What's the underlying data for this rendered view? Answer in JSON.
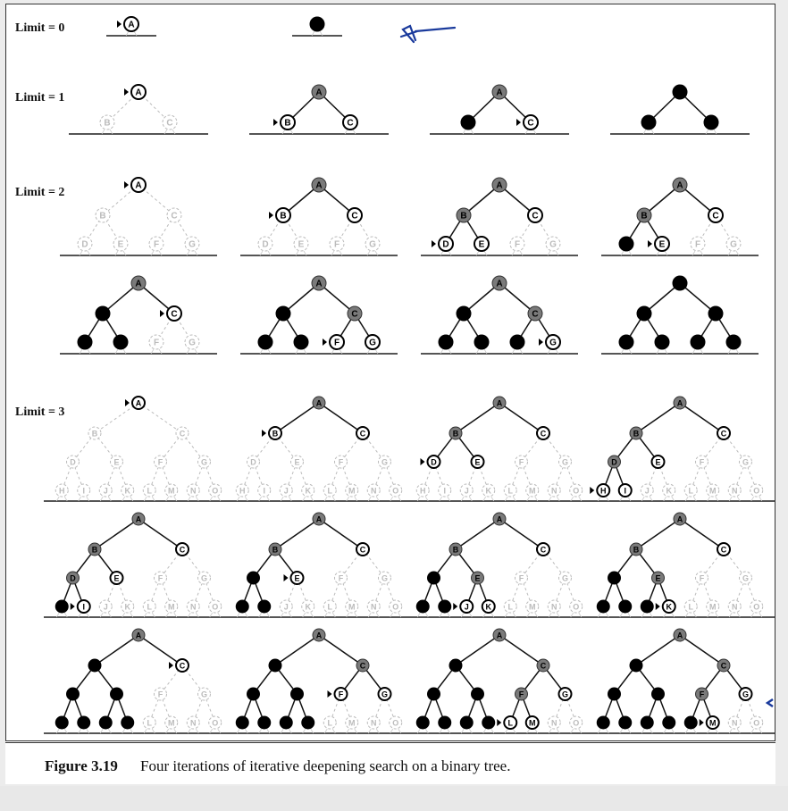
{
  "limit_labels": [
    "Limit = 0",
    "Limit = 1",
    "Limit = 2",
    "Limit = 3"
  ],
  "caption": {
    "number": "Figure 3.19",
    "text": "Four iterations of iterative deepening search on a binary tree."
  },
  "node_letters": [
    "A",
    "B",
    "C",
    "D",
    "E",
    "F",
    "G",
    "H",
    "I",
    "J",
    "K",
    "L",
    "M",
    "N",
    "O"
  ],
  "node_states": {
    "unvisited": "light dashed outline",
    "frontier": "white with black outline",
    "expanded": "gray fill",
    "discarded": "black fill"
  },
  "limit0_stages": [
    {
      "A": "f",
      "marker": "A"
    },
    {
      "A": "x"
    }
  ],
  "limit1_stages": [
    {
      "A": "f",
      "B": "u",
      "C": "u",
      "marker": "A"
    },
    {
      "A": "e",
      "B": "f",
      "C": "f",
      "marker": "B"
    },
    {
      "A": "e",
      "B": "x",
      "C": "f",
      "marker": "C"
    },
    {
      "A": "x",
      "B": "x",
      "C": "x"
    }
  ],
  "limit2_stages": [
    {
      "A": "f",
      "B": "u",
      "C": "u",
      "D": "u",
      "E": "u",
      "F": "u",
      "G": "u",
      "marker": "A"
    },
    {
      "A": "e",
      "B": "f",
      "C": "f",
      "D": "u",
      "E": "u",
      "F": "u",
      "G": "u",
      "marker": "B"
    },
    {
      "A": "e",
      "B": "e",
      "C": "f",
      "D": "f",
      "E": "f",
      "F": "u",
      "G": "u",
      "marker": "D"
    },
    {
      "A": "e",
      "B": "e",
      "C": "f",
      "D": "x",
      "E": "f",
      "F": "u",
      "G": "u",
      "marker": "E"
    },
    {
      "A": "e",
      "B": "x",
      "C": "f",
      "D": "x",
      "E": "x",
      "F": "u",
      "G": "u",
      "marker": "C"
    },
    {
      "A": "e",
      "B": "x",
      "C": "e",
      "D": "x",
      "E": "x",
      "F": "f",
      "G": "f",
      "marker": "F"
    },
    {
      "A": "e",
      "B": "x",
      "C": "e",
      "D": "x",
      "E": "x",
      "F": "x",
      "G": "f",
      "marker": "G"
    },
    {
      "A": "x",
      "B": "x",
      "C": "x",
      "D": "x",
      "E": "x",
      "F": "x",
      "G": "x"
    }
  ],
  "limit3_stages": [
    {
      "A": "f",
      "B": "u",
      "C": "u",
      "D": "u",
      "E": "u",
      "F": "u",
      "G": "u",
      "H": "u",
      "I": "u",
      "J": "u",
      "K": "u",
      "L": "u",
      "M": "u",
      "N": "u",
      "O": "u",
      "marker": "A"
    },
    {
      "A": "e",
      "B": "f",
      "C": "f",
      "D": "u",
      "E": "u",
      "F": "u",
      "G": "u",
      "H": "u",
      "I": "u",
      "J": "u",
      "K": "u",
      "L": "u",
      "M": "u",
      "N": "u",
      "O": "u",
      "marker": "B"
    },
    {
      "A": "e",
      "B": "e",
      "C": "f",
      "D": "f",
      "E": "f",
      "F": "u",
      "G": "u",
      "H": "u",
      "I": "u",
      "J": "u",
      "K": "u",
      "L": "u",
      "M": "u",
      "N": "u",
      "O": "u",
      "marker": "D"
    },
    {
      "A": "e",
      "B": "e",
      "C": "f",
      "D": "e",
      "E": "f",
      "F": "u",
      "G": "u",
      "H": "f",
      "I": "f",
      "J": "u",
      "K": "u",
      "L": "u",
      "M": "u",
      "N": "u",
      "O": "u",
      "marker": "H"
    },
    {
      "A": "e",
      "B": "e",
      "C": "f",
      "D": "e",
      "E": "f",
      "F": "u",
      "G": "u",
      "H": "x",
      "I": "f",
      "J": "u",
      "K": "u",
      "L": "u",
      "M": "u",
      "N": "u",
      "O": "u",
      "marker": "I"
    },
    {
      "A": "e",
      "B": "e",
      "C": "f",
      "D": "x",
      "E": "f",
      "F": "u",
      "G": "u",
      "H": "x",
      "I": "x",
      "J": "u",
      "K": "u",
      "L": "u",
      "M": "u",
      "N": "u",
      "O": "u",
      "marker": "E"
    },
    {
      "A": "e",
      "B": "e",
      "C": "f",
      "D": "x",
      "E": "e",
      "F": "u",
      "G": "u",
      "H": "x",
      "I": "x",
      "J": "f",
      "K": "f",
      "L": "u",
      "M": "u",
      "N": "u",
      "O": "u",
      "marker": "J"
    },
    {
      "A": "e",
      "B": "e",
      "C": "f",
      "D": "x",
      "E": "e",
      "F": "u",
      "G": "u",
      "H": "x",
      "I": "x",
      "J": "x",
      "K": "f",
      "L": "u",
      "M": "u",
      "N": "u",
      "O": "u",
      "marker": "K"
    },
    {
      "A": "e",
      "B": "x",
      "C": "f",
      "D": "x",
      "E": "x",
      "F": "u",
      "G": "u",
      "H": "x",
      "I": "x",
      "J": "x",
      "K": "x",
      "L": "u",
      "M": "u",
      "N": "u",
      "O": "u",
      "marker": "C"
    },
    {
      "A": "e",
      "B": "x",
      "C": "e",
      "D": "x",
      "E": "x",
      "F": "f",
      "G": "f",
      "H": "x",
      "I": "x",
      "J": "x",
      "K": "x",
      "L": "u",
      "M": "u",
      "N": "u",
      "O": "u",
      "marker": "F"
    },
    {
      "A": "e",
      "B": "x",
      "C": "e",
      "D": "x",
      "E": "x",
      "F": "e",
      "G": "f",
      "H": "x",
      "I": "x",
      "J": "x",
      "K": "x",
      "L": "f",
      "M": "f",
      "N": "u",
      "O": "u",
      "marker": "L"
    },
    {
      "A": "e",
      "B": "x",
      "C": "e",
      "D": "x",
      "E": "x",
      "F": "e",
      "G": "f",
      "H": "x",
      "I": "x",
      "J": "x",
      "K": "x",
      "L": "x",
      "M": "f",
      "N": "u",
      "O": "u",
      "marker": "M"
    }
  ],
  "colors": {
    "frontier_fill": "#ffffff",
    "expanded_fill": "#7a7a7a",
    "discarded_fill": "#000000",
    "unvisited_stroke": "#b0b0b0",
    "annotation_blue": "#1a3a9c"
  }
}
